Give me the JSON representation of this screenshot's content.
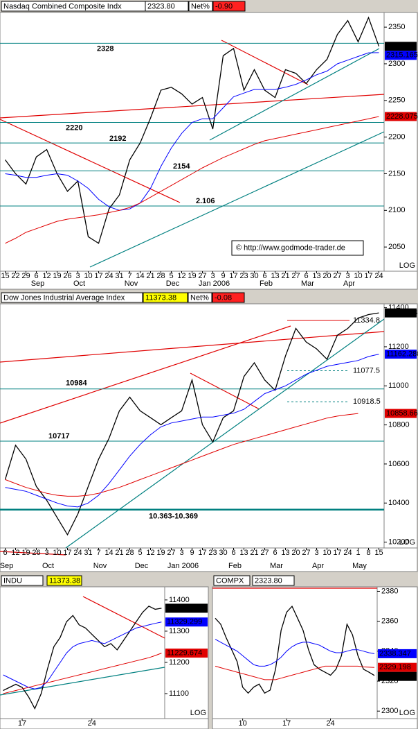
{
  "chart_data": [
    {
      "type": "line",
      "header": {
        "title": "Nasdaq Combined Composite Indx",
        "value": "2323.80",
        "net_label": "Net%",
        "net": "-0.90"
      },
      "categories": [
        "15",
        "22",
        "29",
        "6",
        "12",
        "19",
        "26",
        "3",
        "10",
        "17",
        "24",
        "31",
        "7",
        "14",
        "21",
        "28",
        "5",
        "12",
        "19",
        "27",
        "3",
        "9",
        "17",
        "23",
        "30",
        "6",
        "13",
        "21",
        "27",
        "6",
        "13",
        "20",
        "27",
        "3",
        "10",
        "17",
        "24"
      ],
      "months": [
        "Sep",
        "Oct",
        "Nov",
        "Dec",
        "Jan 2006",
        "Feb",
        "Mar",
        "Apr"
      ],
      "ylim": [
        2017,
        2370
      ],
      "yticks": [
        2050,
        2100,
        2150,
        2200,
        2250,
        2300,
        2350
      ],
      "series": [
        {
          "color": "#000000",
          "end_label": "2323.80",
          "values": [
            2169,
            2150,
            2136,
            2173,
            2183,
            2150,
            2126,
            2140,
            2064,
            2055,
            2102,
            2121,
            2169,
            2192,
            2226,
            2264,
            2268,
            2259,
            2245,
            2254,
            2211,
            2311,
            2321,
            2264,
            2292,
            2264,
            2254,
            2292,
            2287,
            2273,
            2292,
            2306,
            2340,
            2359,
            2330,
            2363,
            2323.8
          ]
        },
        {
          "color": "#0000ff",
          "end_label": "2315.165",
          "values": [
            2150,
            2148,
            2145,
            2145,
            2148,
            2150,
            2148,
            2140,
            2130,
            2115,
            2105,
            2100,
            2102,
            2110,
            2130,
            2160,
            2185,
            2205,
            2220,
            2225,
            2225,
            2240,
            2255,
            2260,
            2265,
            2265,
            2265,
            2268,
            2272,
            2278,
            2285,
            2290,
            2300,
            2305,
            2310,
            2315,
            2315.165
          ]
        },
        {
          "color": "#e00000",
          "end_label": "2228.075",
          "values": [
            2055,
            2062,
            2070,
            2075,
            2080,
            2085,
            2088,
            2090,
            2092,
            2094,
            2097,
            2100,
            2104,
            2110,
            2118,
            2126,
            2134,
            2142,
            2150,
            2158,
            2165,
            2172,
            2178,
            2184,
            2190,
            2195,
            2198,
            2201,
            2204,
            2207,
            2210,
            2213,
            2216,
            2219,
            2222,
            2225,
            2228.075
          ]
        }
      ],
      "levels": [
        2328,
        2220,
        2192,
        2154,
        {
          "value": 2106,
          "label": "2.106"
        }
      ],
      "scale_label": "LOG",
      "credit": "© http://www.godmode-trader.de"
    },
    {
      "type": "line",
      "header": {
        "title": "Dow Jones Industrial Average Index",
        "value": "11373.38",
        "net_label": "Net%",
        "net": "-0.08"
      },
      "categories": [
        "6",
        "12",
        "19",
        "26",
        "3",
        "10",
        "17",
        "24",
        "31",
        "7",
        "14",
        "21",
        "28",
        "5",
        "12",
        "19",
        "27",
        "3",
        "9",
        "17",
        "23",
        "30",
        "6",
        "13",
        "21",
        "27",
        "6",
        "13",
        "20",
        "27",
        "3",
        "10",
        "17",
        "24",
        "1",
        "8",
        "15"
      ],
      "months": [
        "Sep",
        "Oct",
        "Nov",
        "Dec",
        "Jan 2006",
        "Feb",
        "Mar",
        "Apr",
        "May"
      ],
      "ylim": [
        10170,
        11420
      ],
      "yticks": [
        10200,
        10400,
        10600,
        10800,
        11000,
        11200,
        11400
      ],
      "series": [
        {
          "color": "#000000",
          "end_label": "11373.38",
          "values": [
            10520,
            10696,
            10625,
            10485,
            10414,
            10326,
            10238,
            10344,
            10485,
            10625,
            10731,
            10872,
            10942,
            10872,
            10837,
            10801,
            10837,
            10872,
            11030,
            10801,
            10713,
            10837,
            10872,
            11048,
            11118,
            11030,
            10977,
            11153,
            11294,
            11224,
            11189,
            11136,
            11259,
            11294,
            11347,
            11365,
            11373.38
          ]
        },
        {
          "color": "#0000ff",
          "end_label": "11162.280",
          "values": [
            10480,
            10470,
            10460,
            10440,
            10420,
            10400,
            10385,
            10380,
            10400,
            10440,
            10500,
            10570,
            10640,
            10700,
            10750,
            10790,
            10810,
            10820,
            10830,
            10840,
            10840,
            10850,
            10860,
            10880,
            10920,
            10960,
            10980,
            11000,
            11030,
            11060,
            11080,
            11100,
            11110,
            11120,
            11130,
            11150,
            11162.28
          ]
        },
        {
          "color": "#e00000",
          "end_label": "10858.663",
          "values": [
            10520,
            10500,
            10480,
            10465,
            10450,
            10440,
            10435,
            10435,
            10440,
            10450,
            10465,
            10480,
            10500,
            10520,
            10540,
            10560,
            10580,
            10600,
            10620,
            10640,
            10660,
            10680,
            10700,
            10715,
            10730,
            10745,
            10760,
            10775,
            10790,
            10805,
            10820,
            10835,
            10845,
            10852,
            10858.663,
            null,
            null
          ]
        }
      ],
      "levels": [
        10984,
        10717,
        {
          "value": 10366,
          "label": "10.363-10.369"
        }
      ],
      "targets": [
        {
          "value": 11334.8,
          "color": "#e00000"
        },
        {
          "value": 11077.5,
          "color": "#008080"
        },
        {
          "value": 10918.5,
          "color": "#008080"
        }
      ],
      "scale_label": "LOG"
    },
    {
      "type": "line",
      "header": {
        "title": "INDU",
        "value": "11373.38"
      },
      "categories": [
        null,
        null,
        null,
        "17",
        null,
        null,
        null,
        null,
        null,
        null,
        null,
        null,
        null,
        null,
        "24",
        null,
        null,
        null,
        null,
        null,
        null,
        null,
        null,
        null,
        null,
        null
      ],
      "ylim": [
        11020,
        11442
      ],
      "yticks": [
        11100,
        11200,
        11300,
        11400
      ],
      "series": [
        {
          "color": "#000000",
          "end_label": "11373.38",
          "values": [
            11110,
            11120,
            11130,
            11120,
            11090,
            11052,
            11100,
            11180,
            11250,
            11280,
            11330,
            11350,
            11320,
            11310,
            11290,
            11270,
            11250,
            11260,
            11240,
            11270,
            11300,
            11330,
            11360,
            11380,
            11370,
            11373.38
          ]
        },
        {
          "color": "#0000ff",
          "end_label": "11329.299",
          "values": [
            11160,
            11150,
            11140,
            11130,
            11120,
            11115,
            11120,
            11140,
            11170,
            11200,
            11230,
            11250,
            11260,
            11265,
            11270,
            11265,
            11260,
            11270,
            11280,
            11290,
            11300,
            11310,
            11315,
            11320,
            11325,
            11329.299
          ]
        },
        {
          "color": "#e00000",
          "end_label": "11229.674",
          "values": [
            11100,
            11105,
            11110,
            11115,
            11120,
            11125,
            11130,
            11135,
            11140,
            11145,
            11150,
            11155,
            11160,
            11165,
            11170,
            11175,
            11180,
            11185,
            11190,
            11195,
            11200,
            11205,
            11210,
            11215,
            11222,
            11229.674
          ]
        }
      ],
      "scale_label": "LOG"
    },
    {
      "type": "line",
      "header": {
        "title": "COMPX",
        "value": "2323.80"
      },
      "categories": [
        null,
        null,
        null,
        null,
        null,
        "10",
        null,
        null,
        null,
        null,
        null,
        null,
        null,
        "17",
        null,
        null,
        null,
        null,
        null,
        null,
        null,
        "24",
        null,
        null,
        null,
        null,
        null,
        null,
        null,
        null
      ],
      "ylim": [
        2295,
        2383
      ],
      "yticks": [
        2300,
        2320,
        2340,
        2360,
        2380
      ],
      "series": [
        {
          "color": "#000000",
          "end_label": "2323.80",
          "values": [
            2362,
            2358,
            2349,
            2341,
            2333,
            2316,
            2312,
            2316,
            2318,
            2312,
            2314,
            2328,
            2354,
            2366,
            2370,
            2362,
            2354,
            2341,
            2331,
            2328,
            2326,
            2324,
            2328,
            2337,
            2358,
            2351,
            2337,
            2328,
            2326,
            2323.8
          ]
        },
        {
          "color": "#0000ff",
          "end_label": "2338.347",
          "values": [
            2348,
            2346,
            2344,
            2342,
            2340,
            2337,
            2334,
            2331,
            2330,
            2330,
            2331,
            2333,
            2336,
            2340,
            2343,
            2345,
            2346,
            2346,
            2345,
            2344,
            2342,
            2340,
            2339,
            2339,
            2340,
            2341,
            2341,
            2340,
            2339,
            2338.347
          ]
        },
        {
          "color": "#e00000",
          "end_label": "2329.198",
          "values": [
            2330,
            2329,
            2328,
            2327,
            2326,
            2325,
            2324,
            2323,
            2322,
            2321,
            2321,
            2321,
            2322,
            2323,
            2324,
            2325,
            2326,
            2327,
            2328,
            2329,
            2330,
            2330,
            2330,
            2330,
            2330,
            2330,
            2330,
            2329.5,
            2329.3,
            2329.198
          ]
        }
      ],
      "scale_label": "LOG"
    }
  ]
}
